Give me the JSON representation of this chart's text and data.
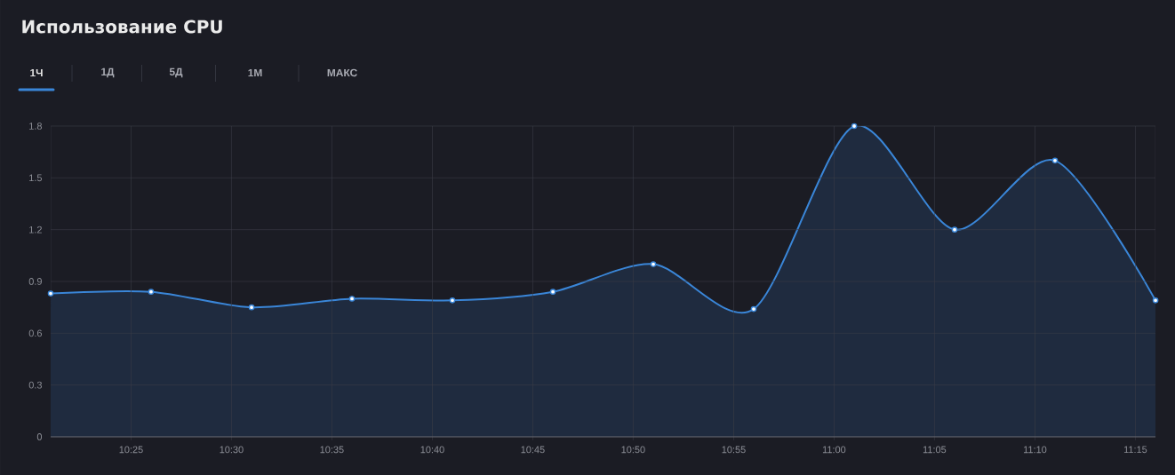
{
  "chart_data": {
    "type": "area",
    "title": "Использование CPU",
    "annotations": [
      "1Ч",
      "1Д",
      "5Д",
      "1М",
      "МАКС"
    ],
    "x": [
      10.35,
      10.4333,
      10.5167,
      10.6,
      10.6833,
      10.7667,
      10.85,
      10.9333,
      11.0167,
      11.1,
      11.1833,
      11.2667
    ],
    "series": [
      {
        "color": "#3a86d8",
        "values": [
          0.83,
          0.84,
          0.75,
          0.8,
          0.79,
          0.84,
          1.0,
          0.74,
          1.8,
          1.2,
          1.6,
          0.79
        ]
      }
    ],
    "xlim": [
      10.35,
      11.2667
    ],
    "xticks": [
      {
        "value": 10.4167,
        "label": "10:25"
      },
      {
        "value": 10.5,
        "label": "10:30"
      },
      {
        "value": 10.5833,
        "label": "10:35"
      },
      {
        "value": 10.6667,
        "label": "10:40"
      },
      {
        "value": 10.75,
        "label": "10:45"
      },
      {
        "value": 10.8333,
        "label": "10:50"
      },
      {
        "value": 10.9167,
        "label": "10:55"
      },
      {
        "value": 11.0,
        "label": "11:00"
      },
      {
        "value": 11.0833,
        "label": "11:05"
      },
      {
        "value": 11.1667,
        "label": "11:10"
      },
      {
        "value": 11.25,
        "label": "11:15"
      }
    ],
    "ylim": [
      0,
      1.8
    ],
    "yticks": [
      0,
      0.3,
      0.6,
      0.9,
      1.2,
      1.5,
      1.8
    ],
    "grid": true,
    "marker": "circle",
    "line_style": "solid"
  }
}
